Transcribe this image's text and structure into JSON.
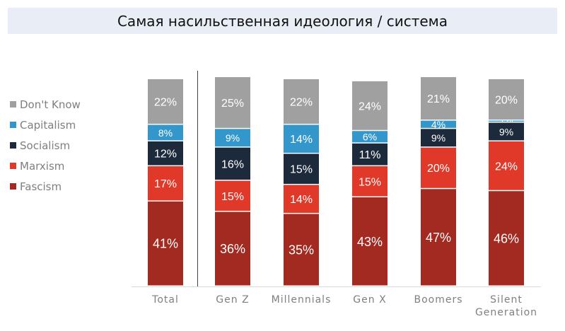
{
  "title": "Самая насильственная идеология / система",
  "chart_data": {
    "type": "bar",
    "stacked": true,
    "categories": [
      "Total",
      "Gen Z",
      "Millennials",
      "Gen X",
      "Boomers",
      "Silent Generation"
    ],
    "series": [
      {
        "name": "Fascism",
        "color": "#a32a20",
        "values": [
          41,
          36,
          35,
          43,
          47,
          46
        ]
      },
      {
        "name": "Marxism",
        "color": "#e0392a",
        "values": [
          17,
          15,
          14,
          15,
          20,
          24
        ]
      },
      {
        "name": "Socialism",
        "color": "#1d2a3c",
        "values": [
          12,
          16,
          15,
          11,
          9,
          9
        ]
      },
      {
        "name": "Capitalism",
        "color": "#3497cb",
        "values": [
          8,
          9,
          14,
          6,
          4,
          1
        ]
      },
      {
        "name": "Don't Know",
        "color": "#a0a0a0",
        "values": [
          22,
          25,
          22,
          24,
          21,
          20
        ]
      }
    ],
    "value_suffix": "%",
    "ylim": [
      0,
      100
    ],
    "legend_position": "left",
    "grid": false
  }
}
